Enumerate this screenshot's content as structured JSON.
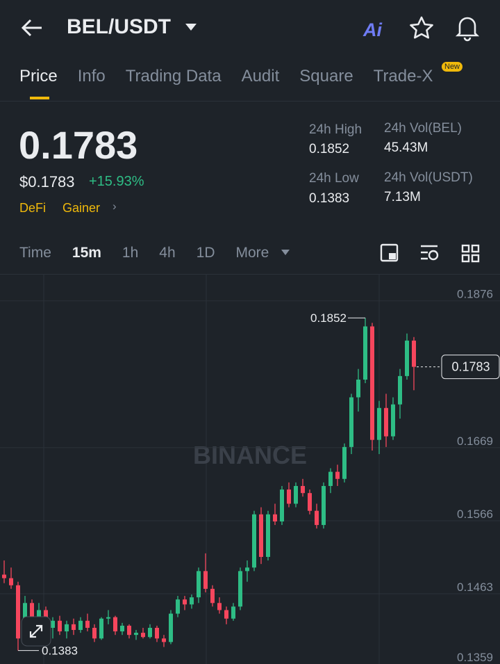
{
  "header": {
    "pair": "BEL/USDT",
    "ai": "Ai"
  },
  "tabs": {
    "items": [
      "Price",
      "Info",
      "Trading Data",
      "Audit",
      "Square",
      "Trade-X"
    ],
    "badge": "New"
  },
  "price": {
    "last": "0.1783",
    "usd": "$0.1783",
    "change": "+15.93%",
    "tags": [
      "DeFi",
      "Gainer"
    ]
  },
  "stats": [
    {
      "label": "24h High",
      "value": "0.1852"
    },
    {
      "label": "24h Vol(BEL)",
      "value": "45.43M"
    },
    {
      "label": "24h Low",
      "value": "0.1383"
    },
    {
      "label": "24h Vol(USDT)",
      "value": "7.13M"
    }
  ],
  "intervals": [
    "Time",
    "15m",
    "1h",
    "4h",
    "1D",
    "More"
  ],
  "watermark": "BINANCE",
  "chart": {
    "type": "candlestick",
    "up_color": "#2ebd85",
    "down_color": "#f6465d",
    "ylim": [
      0.1364,
      0.1913
    ],
    "yticks": [
      0.1876,
      0.1669,
      0.1566,
      0.1463,
      0.1359
    ],
    "high_label": {
      "value": 0.1852,
      "label": "0.1852"
    },
    "low_label": {
      "value": 0.1383,
      "label": "0.1383"
    },
    "current": {
      "value": 0.1783,
      "label": "0.1783"
    },
    "candles": [
      [
        0.149,
        0.151,
        0.1478,
        0.1485
      ],
      [
        0.1485,
        0.15,
        0.147,
        0.1475
      ],
      [
        0.1475,
        0.148,
        0.1383,
        0.14
      ],
      [
        0.14,
        0.146,
        0.1395,
        0.145
      ],
      [
        0.145,
        0.1455,
        0.142,
        0.1425
      ],
      [
        0.1425,
        0.145,
        0.141,
        0.144
      ],
      [
        0.144,
        0.1445,
        0.1405,
        0.1415
      ],
      [
        0.1415,
        0.143,
        0.14,
        0.1425
      ],
      [
        0.1425,
        0.1432,
        0.1405,
        0.141
      ],
      [
        0.141,
        0.1425,
        0.14,
        0.142
      ],
      [
        0.142,
        0.1428,
        0.1405,
        0.1412
      ],
      [
        0.1412,
        0.143,
        0.1408,
        0.1425
      ],
      [
        0.1425,
        0.1435,
        0.141,
        0.1415
      ],
      [
        0.1415,
        0.142,
        0.1395,
        0.14
      ],
      [
        0.14,
        0.143,
        0.1398,
        0.1428
      ],
      [
        0.1428,
        0.144,
        0.142,
        0.143
      ],
      [
        0.143,
        0.1432,
        0.1405,
        0.141
      ],
      [
        0.141,
        0.1422,
        0.1405,
        0.1418
      ],
      [
        0.1418,
        0.142,
        0.14,
        0.1405
      ],
      [
        0.1405,
        0.1412,
        0.1398,
        0.1408
      ],
      [
        0.1408,
        0.1415,
        0.14,
        0.1402
      ],
      [
        0.1402,
        0.142,
        0.14,
        0.1415
      ],
      [
        0.1415,
        0.1418,
        0.1395,
        0.14
      ],
      [
        0.14,
        0.1405,
        0.1388,
        0.1395
      ],
      [
        0.1395,
        0.144,
        0.1392,
        0.1435
      ],
      [
        0.1435,
        0.146,
        0.143,
        0.1455
      ],
      [
        0.1455,
        0.146,
        0.144,
        0.1448
      ],
      [
        0.1448,
        0.1462,
        0.1442,
        0.1458
      ],
      [
        0.1458,
        0.15,
        0.145,
        0.1495
      ],
      [
        0.1495,
        0.152,
        0.1465,
        0.147
      ],
      [
        0.147,
        0.1475,
        0.1445,
        0.145
      ],
      [
        0.145,
        0.1458,
        0.1435,
        0.144
      ],
      [
        0.144,
        0.1445,
        0.142,
        0.1428
      ],
      [
        0.1428,
        0.145,
        0.1425,
        0.1445
      ],
      [
        0.1445,
        0.15,
        0.144,
        0.1495
      ],
      [
        0.1495,
        0.151,
        0.148,
        0.15
      ],
      [
        0.15,
        0.158,
        0.1495,
        0.1575
      ],
      [
        0.1575,
        0.1585,
        0.1505,
        0.1515
      ],
      [
        0.1515,
        0.158,
        0.151,
        0.1575
      ],
      [
        0.1575,
        0.159,
        0.156,
        0.1565
      ],
      [
        0.1565,
        0.1615,
        0.156,
        0.161
      ],
      [
        0.161,
        0.162,
        0.1585,
        0.159
      ],
      [
        0.159,
        0.162,
        0.1585,
        0.1615
      ],
      [
        0.1615,
        0.1625,
        0.16,
        0.1605
      ],
      [
        0.1605,
        0.161,
        0.1575,
        0.158
      ],
      [
        0.158,
        0.159,
        0.1555,
        0.156
      ],
      [
        0.156,
        0.162,
        0.1555,
        0.1615
      ],
      [
        0.1615,
        0.164,
        0.1605,
        0.1635
      ],
      [
        0.1635,
        0.1645,
        0.1615,
        0.1625
      ],
      [
        0.1625,
        0.1675,
        0.162,
        0.167
      ],
      [
        0.167,
        0.1745,
        0.166,
        0.174
      ],
      [
        0.174,
        0.178,
        0.172,
        0.1765
      ],
      [
        0.1765,
        0.1852,
        0.176,
        0.184
      ],
      [
        0.184,
        0.1845,
        0.1665,
        0.168
      ],
      [
        0.168,
        0.1735,
        0.166,
        0.1725
      ],
      [
        0.1725,
        0.1745,
        0.167,
        0.1685
      ],
      [
        0.1685,
        0.174,
        0.168,
        0.173
      ],
      [
        0.173,
        0.178,
        0.171,
        0.177
      ],
      [
        0.177,
        0.183,
        0.1765,
        0.182
      ],
      [
        0.182,
        0.1825,
        0.175,
        0.1783
      ]
    ]
  }
}
